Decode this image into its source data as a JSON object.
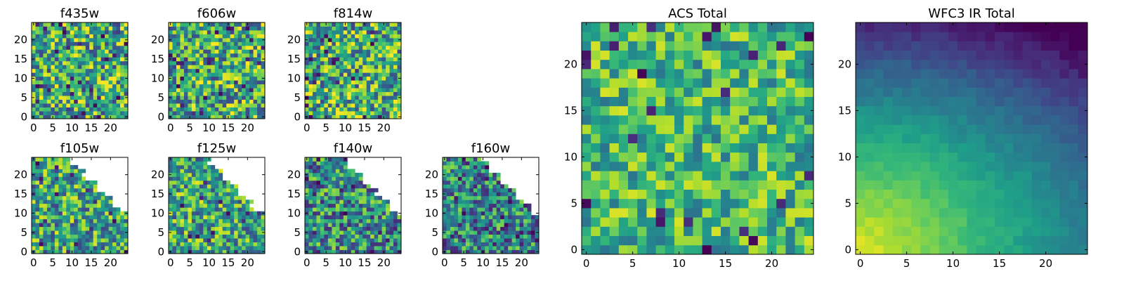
{
  "colormap": "viridis",
  "colors": {
    "low": "#440154",
    "mid": "#21918c",
    "high": "#fde725",
    "axes": "#000000"
  },
  "grid": false,
  "chart_data": [
    {
      "type": "heatmap",
      "title": "f435w",
      "rows": 25,
      "cols": 25,
      "xticks": [
        0,
        5,
        10,
        15,
        20
      ],
      "yticks": [
        0,
        5,
        10,
        15,
        20
      ],
      "xlim": [
        0,
        25
      ],
      "ylim": [
        0,
        25
      ],
      "pattern": "noise",
      "mean": 0.6,
      "spread": 0.55,
      "masked": false,
      "seed": 11
    },
    {
      "type": "heatmap",
      "title": "f606w",
      "rows": 25,
      "cols": 25,
      "xticks": [
        0,
        5,
        10,
        15,
        20
      ],
      "yticks": [
        0,
        5,
        10,
        15,
        20
      ],
      "xlim": [
        0,
        25
      ],
      "ylim": [
        0,
        25
      ],
      "pattern": "noise",
      "mean": 0.62,
      "spread": 0.55,
      "masked": false,
      "seed": 23
    },
    {
      "type": "heatmap",
      "title": "f814w",
      "rows": 25,
      "cols": 25,
      "xticks": [
        0,
        5,
        10,
        15,
        20
      ],
      "yticks": [
        0,
        5,
        10,
        15,
        20
      ],
      "xlim": [
        0,
        25
      ],
      "ylim": [
        0,
        25
      ],
      "pattern": "noise",
      "mean": 0.62,
      "spread": 0.55,
      "masked": false,
      "seed": 37
    },
    {
      "type": "heatmap",
      "title": "f105w",
      "rows": 25,
      "cols": 25,
      "xticks": [
        0,
        5,
        10,
        15,
        20
      ],
      "yticks": [
        0,
        5,
        10,
        15,
        20
      ],
      "xlim": [
        0,
        25
      ],
      "ylim": [
        0,
        25
      ],
      "pattern": "noise",
      "mean": 0.58,
      "spread": 0.5,
      "masked": true,
      "seed": 41
    },
    {
      "type": "heatmap",
      "title": "f125w",
      "rows": 25,
      "cols": 25,
      "xticks": [
        0,
        5,
        10,
        15,
        20
      ],
      "yticks": [
        0,
        5,
        10,
        15,
        20
      ],
      "xlim": [
        0,
        25
      ],
      "ylim": [
        0,
        25
      ],
      "pattern": "noise",
      "mean": 0.6,
      "spread": 0.5,
      "masked": true,
      "seed": 53
    },
    {
      "type": "heatmap",
      "title": "f140w",
      "rows": 25,
      "cols": 25,
      "xticks": [
        0,
        5,
        10,
        15,
        20
      ],
      "yticks": [
        0,
        5,
        10,
        15,
        20
      ],
      "xlim": [
        0,
        25
      ],
      "ylim": [
        0,
        25
      ],
      "pattern": "noise",
      "mean": 0.5,
      "spread": 0.5,
      "masked": true,
      "seed": 67
    },
    {
      "type": "heatmap",
      "title": "f160w",
      "rows": 25,
      "cols": 25,
      "xticks": [
        0,
        5,
        10,
        15,
        20
      ],
      "yticks": [
        0,
        5,
        10,
        15,
        20
      ],
      "xlim": [
        0,
        25
      ],
      "ylim": [
        0,
        25
      ],
      "pattern": "noise",
      "mean": 0.45,
      "spread": 0.5,
      "masked": true,
      "seed": 79
    },
    {
      "type": "heatmap",
      "title": "ACS Total",
      "rows": 25,
      "cols": 25,
      "xticks": [
        0,
        5,
        10,
        15,
        20
      ],
      "yticks": [
        0,
        5,
        10,
        15,
        20
      ],
      "xlim": [
        0,
        25
      ],
      "ylim": [
        0,
        25
      ],
      "pattern": "noise",
      "mean": 0.66,
      "spread": 0.38,
      "masked": false,
      "seed": 97
    },
    {
      "type": "heatmap",
      "title": "WFC3 IR Total",
      "rows": 25,
      "cols": 25,
      "xticks": [
        0,
        5,
        10,
        15,
        20
      ],
      "yticks": [
        0,
        5,
        10,
        15,
        20
      ],
      "xlim": [
        0,
        25
      ],
      "ylim": [
        0,
        25
      ],
      "pattern": "gradient",
      "mean": 0.45,
      "spread": 0.08,
      "masked": false,
      "seed": 101
    }
  ]
}
